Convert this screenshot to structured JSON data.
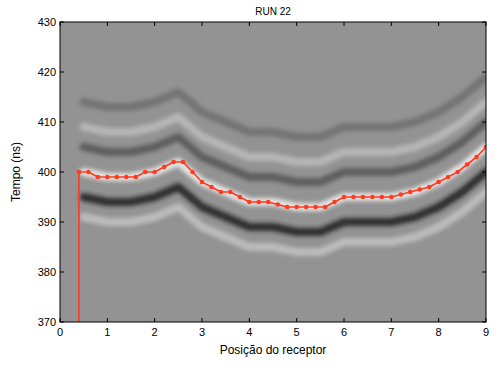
{
  "chart_data": {
    "type": "line",
    "title": "RUN 22",
    "x_label": "Posição do receptor",
    "y_label": "Tempo (ns)",
    "xlim": [
      0,
      9
    ],
    "ylim": [
      370,
      430
    ],
    "xticks": [
      0,
      1,
      2,
      3,
      4,
      5,
      6,
      7,
      8,
      9
    ],
    "yticks": [
      370,
      380,
      390,
      400,
      410,
      420,
      430
    ],
    "grid": false,
    "series": [
      {
        "color": "#6e6e6e",
        "marker": "none",
        "line_style": "solid",
        "x": [
          0.5,
          1,
          1.5,
          2,
          2.5,
          3,
          3.5,
          4,
          4.5,
          5,
          5.5,
          6,
          6.5,
          7,
          7.5,
          8,
          8.5,
          9
        ],
        "values": [
          414,
          413,
          413,
          414,
          416,
          412,
          410,
          408,
          408,
          407,
          407,
          409,
          409,
          409,
          410,
          412,
          415,
          419
        ]
      },
      {
        "color": "#bdbdbd",
        "marker": "none",
        "line_style": "solid",
        "x": [
          0.5,
          1,
          1.5,
          2,
          2.5,
          3,
          3.5,
          4,
          4.5,
          5,
          5.5,
          6,
          6.5,
          7,
          7.5,
          8,
          8.5,
          9
        ],
        "values": [
          409,
          408,
          408,
          409,
          411,
          407,
          405,
          403,
          403,
          402,
          402,
          404,
          404,
          404,
          405,
          407,
          410,
          414
        ]
      },
      {
        "color": "#555555",
        "marker": "none",
        "line_style": "solid",
        "x": [
          0.5,
          1,
          1.5,
          2,
          2.5,
          3,
          3.5,
          4,
          4.5,
          5,
          5.5,
          6,
          6.5,
          7,
          7.5,
          8,
          8.5,
          9
        ],
        "values": [
          405,
          404,
          404,
          405,
          407,
          403,
          401,
          399,
          399,
          398,
          398,
          400,
          400,
          400,
          401,
          403,
          406,
          410
        ]
      },
      {
        "color": "#f4f4f4",
        "marker": "none",
        "line_style": "solid",
        "x": [
          0.5,
          1,
          1.5,
          2,
          2.5,
          3,
          3.5,
          4,
          4.5,
          5,
          5.5,
          6,
          6.5,
          7,
          7.5,
          8,
          8.5,
          9
        ],
        "values": [
          400,
          399,
          399,
          400,
          402,
          398,
          396,
          394,
          394,
          393,
          393,
          395,
          395,
          395,
          396,
          398,
          401,
          405
        ]
      },
      {
        "color": "#1a1a1a",
        "marker": "none",
        "line_style": "solid",
        "x": [
          0.5,
          1,
          1.5,
          2,
          2.5,
          3,
          3.5,
          4,
          4.5,
          5,
          5.5,
          6,
          6.5,
          7,
          7.5,
          8,
          8.5,
          9
        ],
        "values": [
          395,
          394,
          394,
          395,
          397,
          393,
          391,
          389,
          389,
          388,
          388,
          390,
          390,
          390,
          391,
          393,
          396,
          400
        ]
      },
      {
        "color": "#c4c4c4",
        "marker": "none",
        "line_style": "solid",
        "x": [
          0.5,
          1,
          1.5,
          2,
          2.5,
          3,
          3.5,
          4,
          4.5,
          5,
          5.5,
          6,
          6.5,
          7,
          7.5,
          8,
          8.5,
          9
        ],
        "values": [
          391,
          390,
          390,
          391,
          393,
          389,
          387,
          385,
          385,
          384,
          384,
          386,
          386,
          386,
          387,
          389,
          392,
          396
        ]
      },
      {
        "color": "#ff3b1f",
        "marker": "none",
        "line_style": "solid",
        "x": [
          0.4,
          0.4
        ],
        "values": [
          370,
          400
        ]
      },
      {
        "color": "#ff3b1f",
        "marker": "circle",
        "line_style": "solid",
        "x": [
          0.4,
          0.6,
          0.8,
          1.0,
          1.2,
          1.4,
          1.6,
          1.8,
          2.0,
          2.2,
          2.4,
          2.6,
          2.8,
          3.0,
          3.2,
          3.4,
          3.6,
          3.8,
          4.0,
          4.2,
          4.4,
          4.6,
          4.8,
          5.0,
          5.2,
          5.4,
          5.6,
          5.8,
          6.0,
          6.2,
          6.4,
          6.6,
          6.8,
          7.0,
          7.2,
          7.4,
          7.6,
          7.8,
          8.0,
          8.2,
          8.4,
          8.6,
          8.8,
          9.0
        ],
        "values": [
          400,
          400,
          399,
          399,
          399,
          399,
          399,
          400,
          400,
          401,
          402,
          402,
          400,
          398,
          397,
          396,
          396,
          395,
          394,
          394,
          394,
          393.5,
          393,
          393,
          393,
          393,
          393,
          394,
          395,
          395,
          395,
          395,
          395,
          395,
          395.5,
          396,
          396.5,
          397,
          398,
          399,
          400,
          401.5,
          403,
          405
        ]
      }
    ]
  }
}
